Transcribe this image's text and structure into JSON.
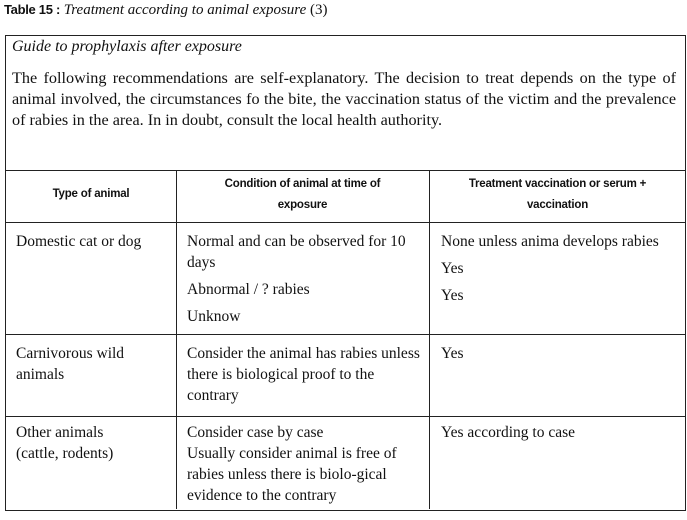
{
  "caption": {
    "label": "Table 15 :",
    "title": "Treatment according to animal exposure",
    "number": "(3)"
  },
  "guide_title": "Guide to prophylaxis after exposure",
  "intro": "The following recommendations are self-explanatory. The decision to treat depends on the type of animal involved, the circumstances fo the bite, the vaccination status of the victim and the prevalence of rabies in the area. In in doubt, consult the local health authority.",
  "headers": [
    "Type of animal",
    "Condition of animal at time of exposure",
    "Treatment vaccination or serum + vaccination"
  ],
  "rows": [
    {
      "animal": "Domestic cat or dog",
      "conditions": [
        "Normal and can be observed for 10 days",
        "Abnormal / ? rabies",
        "Unknow"
      ],
      "treatments": [
        "None unless anima develops rabies",
        "Yes",
        "Yes"
      ]
    },
    {
      "animal": "Carnivorous wild animals",
      "conditions": [
        "Consider the animal has rabies unless there is biological proof to the contrary"
      ],
      "treatments": [
        "Yes"
      ]
    },
    {
      "animal": "Other animals (cattle, rodents)",
      "conditions": [
        "Consider case by case",
        "Usually consider animal is free of rabies unless there is biolo-gical evidence to the contrary"
      ],
      "treatments": [
        "Yes according to case"
      ]
    }
  ]
}
